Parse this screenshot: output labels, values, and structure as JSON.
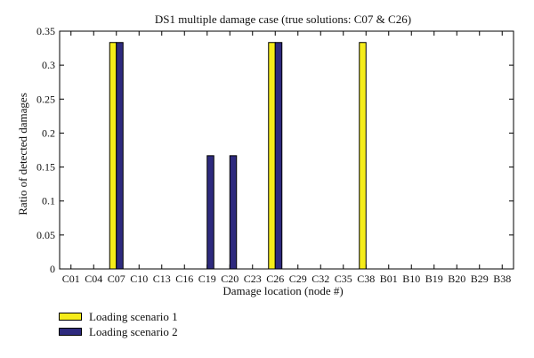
{
  "chart_data": {
    "type": "bar",
    "title": "DS1 multiple damage case (true solutions: C07 & C26)",
    "xlabel": "Damage location (node #)",
    "ylabel": "Ratio of detected damages",
    "ylim": [
      0,
      0.35
    ],
    "yticks": [
      "0",
      "0.05",
      "0.1",
      "0.15",
      "0.2",
      "0.25",
      "0.3",
      "0.35"
    ],
    "categories": [
      "C01",
      "C04",
      "C07",
      "C10",
      "C13",
      "C16",
      "C19",
      "C20",
      "C23",
      "C26",
      "C29",
      "C32",
      "C35",
      "C38",
      "B01",
      "B10",
      "B19",
      "B20",
      "B29",
      "B38"
    ],
    "series": [
      {
        "name": "Loading scenario 1",
        "color": "#f5ec1a",
        "values": [
          0,
          0,
          0.3333,
          0,
          0,
          0,
          0,
          0,
          0,
          0.3333,
          0,
          0,
          0,
          0.3333,
          0,
          0,
          0,
          0,
          0,
          0
        ]
      },
      {
        "name": "Loading scenario 2",
        "color": "#2e2a7e",
        "values": [
          0,
          0,
          0.3333,
          0,
          0,
          0,
          0.1667,
          0.1667,
          0,
          0.3333,
          0,
          0,
          0,
          0,
          0,
          0,
          0,
          0,
          0,
          0
        ]
      }
    ],
    "grid": false,
    "legend_position": "bottom-left"
  }
}
